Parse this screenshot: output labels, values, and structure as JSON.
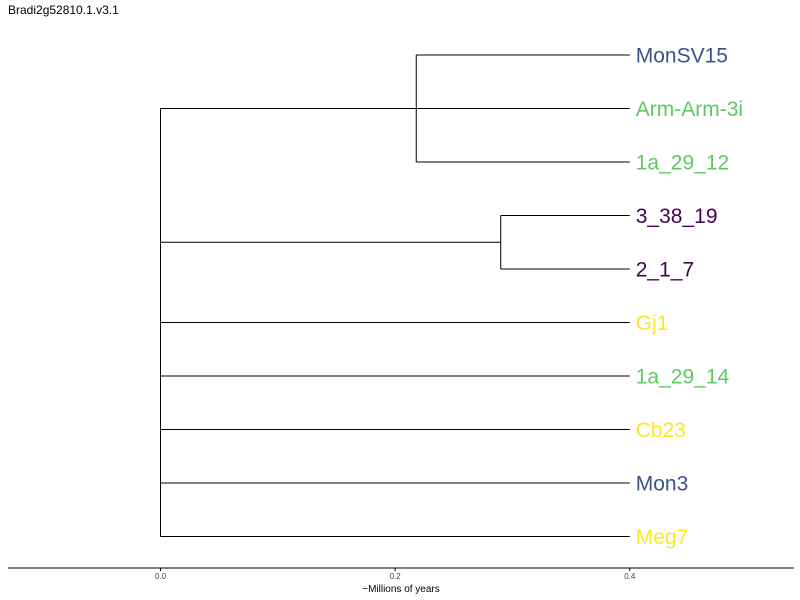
{
  "title": "Bradi2g52810.1.v3.1",
  "axis": {
    "label": "~Millions of years",
    "min": -0.13,
    "max": 0.54,
    "ticks": [
      0.0,
      0.2,
      0.4
    ],
    "tick_labels": [
      "0.0",
      "0.2",
      "0.4"
    ]
  },
  "colors": {
    "blue": "#3b528b",
    "green": "#5ec962",
    "purple": "#440154",
    "yellow": "#fde725",
    "line": "#000000"
  },
  "tips": [
    {
      "label": "MonSV15",
      "color": "#3b528b"
    },
    {
      "label": "Arm-Arm-3i",
      "color": "#5ec962"
    },
    {
      "label": "1a_29_12",
      "color": "#5ec962"
    },
    {
      "label": "3_38_19",
      "color": "#440154"
    },
    {
      "label": "2_1_7",
      "color": "#440154"
    },
    {
      "label": "Gj1",
      "color": "#fde725"
    },
    {
      "label": "1a_29_14",
      "color": "#5ec962"
    },
    {
      "label": "Cb23",
      "color": "#fde725"
    },
    {
      "label": "Mon3",
      "color": "#3b528b"
    },
    {
      "label": "Meg7",
      "color": "#fde725"
    }
  ],
  "tree": {
    "tip_depth": 0.4,
    "root": 0.0,
    "clades": [
      {
        "members": [
          0,
          1,
          2
        ],
        "node_depth": 0.218,
        "attach_tip": 1
      },
      {
        "members": [
          3,
          4
        ],
        "node_depth": 0.29
      },
      {
        "members": [
          5
        ]
      },
      {
        "members": [
          6
        ]
      },
      {
        "members": [
          7
        ]
      },
      {
        "members": [
          8
        ]
      },
      {
        "members": [
          9
        ]
      }
    ]
  }
}
